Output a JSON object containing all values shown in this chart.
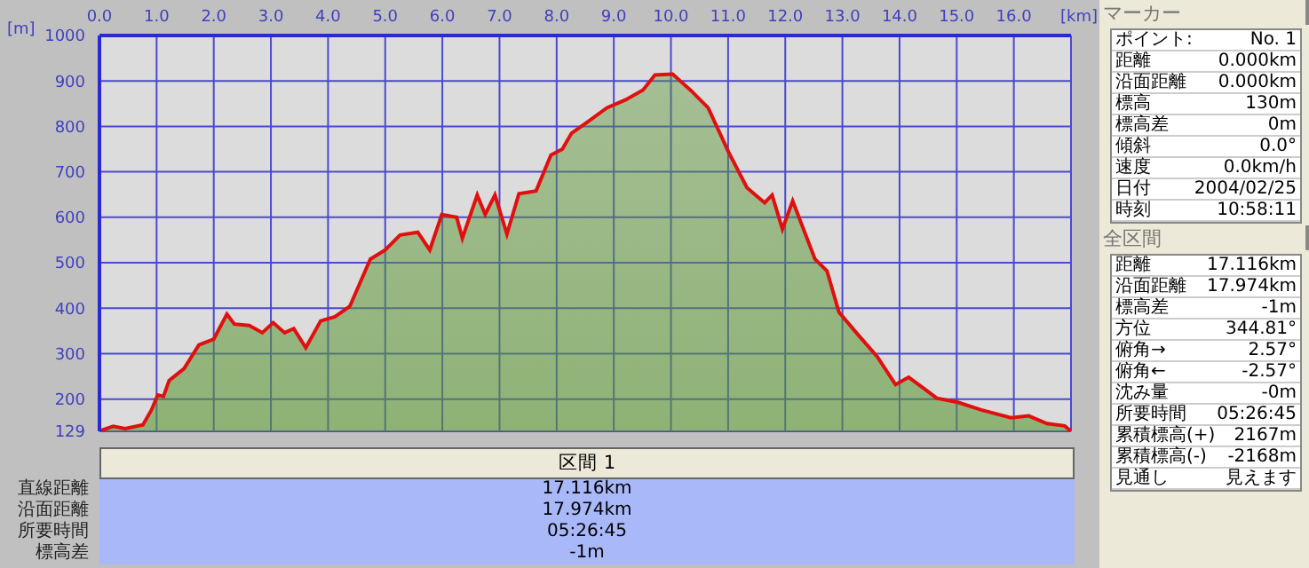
{
  "chart_data": {
    "type": "area",
    "xlabel": "[km]",
    "ylabel": "[m]",
    "x": [
      0,
      0.24,
      0.45,
      0.76,
      0.91,
      1.02,
      1.12,
      1.22,
      1.48,
      1.74,
      2.0,
      2.23,
      2.36,
      2.62,
      2.85,
      3.04,
      3.24,
      3.4,
      3.61,
      3.87,
      4.12,
      4.38,
      4.74,
      5.0,
      5.26,
      5.57,
      5.78,
      5.99,
      6.25,
      6.35,
      6.61,
      6.75,
      6.92,
      7.13,
      7.34,
      7.64,
      7.9,
      8.1,
      8.26,
      8.52,
      8.88,
      9.2,
      9.51,
      9.72,
      10.03,
      10.34,
      10.65,
      11.01,
      11.33,
      11.64,
      11.77,
      11.95,
      12.13,
      12.52,
      12.73,
      12.94,
      13.25,
      13.61,
      13.93,
      14.16,
      14.44,
      14.65,
      15.02,
      15.43,
      15.95,
      16.26,
      16.58,
      16.89,
      17.0
    ],
    "series": [
      {
        "color": "#5a9632",
        "values": [
          130,
          140,
          135,
          143,
          176,
          209,
          206,
          241,
          267,
          319,
          332,
          387,
          365,
          362,
          346,
          368,
          346,
          355,
          313,
          372,
          381,
          404,
          508,
          528,
          561,
          567,
          528,
          606,
          600,
          554,
          649,
          606,
          649,
          563,
          652,
          658,
          737,
          750,
          785,
          808,
          841,
          858,
          880,
          913,
          915,
          880,
          841,
          743,
          665,
          632,
          649,
          574,
          636,
          508,
          482,
          391,
          345,
          293,
          232,
          248,
          222,
          202,
          193,
          176,
          159,
          163,
          146,
          141,
          129
        ]
      }
    ],
    "xlim": [
      0,
      17
    ],
    "ylim": [
      129,
      1000
    ],
    "xticks": [
      {
        "value": 0,
        "label": "0.0"
      },
      {
        "value": 1,
        "label": "1.0"
      },
      {
        "value": 2,
        "label": "2.0"
      },
      {
        "value": 3,
        "label": "3.0"
      },
      {
        "value": 4,
        "label": "4.0"
      },
      {
        "value": 5,
        "label": "5.0"
      },
      {
        "value": 6,
        "label": "6.0"
      },
      {
        "value": 7,
        "label": "7.0"
      },
      {
        "value": 8,
        "label": "8.0"
      },
      {
        "value": 9,
        "label": "9.0"
      },
      {
        "value": 10,
        "label": "10.0"
      },
      {
        "value": 11,
        "label": "11.0"
      },
      {
        "value": 12,
        "label": "12.0"
      },
      {
        "value": 13,
        "label": "13.0"
      },
      {
        "value": 14,
        "label": "14.0"
      },
      {
        "value": 15,
        "label": "15.0"
      },
      {
        "value": 16,
        "label": "16.0"
      }
    ],
    "yticks": [
      129,
      200,
      300,
      400,
      500,
      600,
      700,
      800,
      900,
      1000
    ],
    "grid": true,
    "annotations": [
      "マーカー",
      "ポイント:",
      "No. 1",
      "距離",
      "0.000km",
      "沿面距離",
      "0.000km",
      "標高",
      "130m",
      "標高差",
      "0m",
      "傾斜",
      "0.0°",
      "速度",
      "0.0km/h",
      "日付",
      "2004/02/25",
      "時刻",
      "10:58:11",
      "全区間",
      "距離",
      "17.116km",
      "沿面距離",
      "17.974km",
      "標高差",
      "-1m",
      "方位",
      "344.81°",
      "俯角→",
      "2.57°",
      "俯角←",
      "-2.57°",
      "沈み量",
      "-0m",
      "所要時間",
      "05:26:45",
      "累積標高(+)",
      "2167m",
      "累積標高(-)",
      "-2168m",
      "見通し",
      "見えます",
      "区間 1",
      "直線距離",
      "17.116km",
      "沿面距離",
      "17.974km",
      "所要時間",
      "05:26:45",
      "標高差",
      "-1m"
    ]
  }
}
